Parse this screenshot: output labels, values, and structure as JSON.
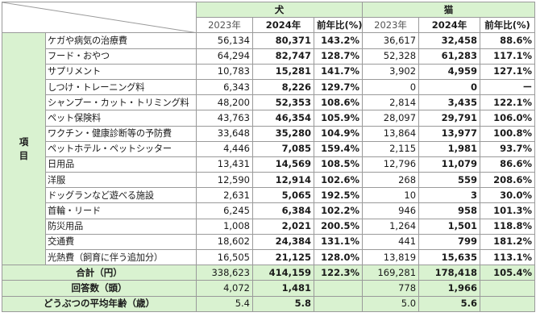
{
  "header": {
    "group_dog": "犬",
    "group_cat": "猫",
    "col_2023": "2023年",
    "col_2024": "2024年",
    "col_ratio": "前年比(%)",
    "side_label_1": "項",
    "side_label_2": "目"
  },
  "rows": [
    {
      "label": "ケガや病気の治療費",
      "d23": "56,134",
      "d24": "80,371",
      "dr": "143.2%",
      "c23": "36,617",
      "c24": "32,458",
      "cr": "88.6%"
    },
    {
      "label": "フード・おやつ",
      "d23": "64,294",
      "d24": "82,747",
      "dr": "128.7%",
      "c23": "52,328",
      "c24": "61,283",
      "cr": "117.1%"
    },
    {
      "label": "サプリメント",
      "d23": "10,783",
      "d24": "15,281",
      "dr": "141.7%",
      "c23": "3,902",
      "c24": "4,959",
      "cr": "127.1%"
    },
    {
      "label": "しつけ・トレーニング料",
      "d23": "6,343",
      "d24": "8,226",
      "dr": "129.7%",
      "c23": "0",
      "c24": "0",
      "cr": "ー"
    },
    {
      "label": "シャンプー・カット・トリミング料",
      "d23": "48,200",
      "d24": "52,353",
      "dr": "108.6%",
      "c23": "2,814",
      "c24": "3,435",
      "cr": "122.1%"
    },
    {
      "label": "ペット保険料",
      "d23": "43,763",
      "d24": "46,354",
      "dr": "105.9%",
      "c23": "28,097",
      "c24": "29,791",
      "cr": "106.0%"
    },
    {
      "label": "ワクチン・健康診断等の予防費",
      "d23": "33,648",
      "d24": "35,280",
      "dr": "104.9%",
      "c23": "13,864",
      "c24": "13,977",
      "cr": "100.8%"
    },
    {
      "label": "ペットホテル・ペットシッター",
      "d23": "4,446",
      "d24": "7,085",
      "dr": "159.4%",
      "c23": "2,115",
      "c24": "1,981",
      "cr": "93.7%"
    },
    {
      "label": "日用品",
      "d23": "13,431",
      "d24": "14,569",
      "dr": "108.5%",
      "c23": "12,796",
      "c24": "11,079",
      "cr": "86.6%"
    },
    {
      "label": "洋服",
      "d23": "12,590",
      "d24": "12,914",
      "dr": "102.6%",
      "c23": "268",
      "c24": "559",
      "cr": "208.6%"
    },
    {
      "label": "ドッグランなど遊べる施設",
      "d23": "2,631",
      "d24": "5,065",
      "dr": "192.5%",
      "c23": "10",
      "c24": "3",
      "cr": "30.0%"
    },
    {
      "label": "首輪・リード",
      "d23": "6,245",
      "d24": "6,384",
      "dr": "102.2%",
      "c23": "946",
      "c24": "958",
      "cr": "101.3%"
    },
    {
      "label": "防災用品",
      "d23": "1,008",
      "d24": "2,021",
      "dr": "200.5%",
      "c23": "1,264",
      "c24": "1,501",
      "cr": "118.8%"
    },
    {
      "label": "交通費",
      "d23": "18,602",
      "d24": "24,384",
      "dr": "131.1%",
      "c23": "441",
      "c24": "799",
      "cr": "181.2%"
    },
    {
      "label": "光熱費（飼育に伴う追加分）",
      "d23": "16,505",
      "d24": "21,125",
      "dr": "128.0%",
      "c23": "13,819",
      "c24": "15,635",
      "cr": "113.1%"
    }
  ],
  "total": {
    "label": "合計（円）",
    "d23": "338,623",
    "d24": "414,159",
    "dr": "122.3%",
    "c23": "169,281",
    "c24": "178,418",
    "cr": "105.4%"
  },
  "respondents": {
    "label": "回答数（頭）",
    "d23": "4,072",
    "d24": "1,481",
    "c23": "778",
    "c24": "1,966"
  },
  "avg_age": {
    "label": "どうぶつの平均年齢（歳）",
    "d23": "5.4",
    "d24": "5.8",
    "c23": "5.0",
    "c24": "5.6"
  },
  "colors": {
    "header_bg": "#d9f2d0",
    "border": "#9a9a9a"
  }
}
